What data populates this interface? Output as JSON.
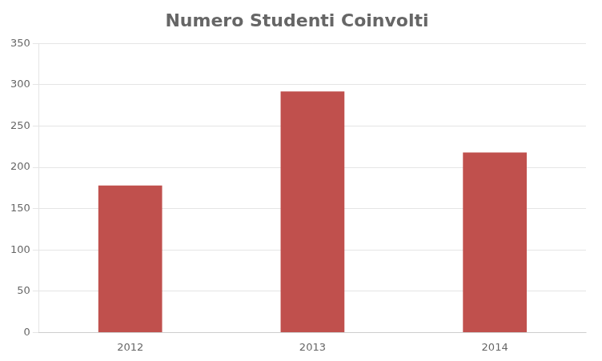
{
  "chart_data": {
    "type": "bar",
    "title": "Numero Studenti Coinvolti",
    "categories": [
      "2012",
      "2013",
      "2014"
    ],
    "values": [
      178,
      292,
      218
    ],
    "color": "#c0504d",
    "ylim": [
      0,
      350
    ],
    "yticks": [
      0,
      50,
      100,
      150,
      200,
      250,
      300,
      350
    ],
    "grid": true
  }
}
